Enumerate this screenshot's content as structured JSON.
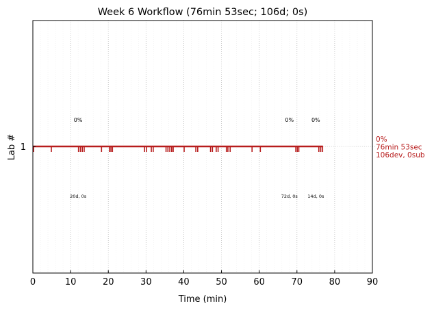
{
  "chart_data": {
    "type": "line",
    "title": "Week 6 Workflow (76min 53sec; 106d; 0s)",
    "xlabel": "Time (min)",
    "ylabel": "Lab #",
    "xlim": [
      0,
      90
    ],
    "x_ticks": [
      0,
      10,
      20,
      30,
      40,
      50,
      60,
      70,
      80,
      90
    ],
    "y_ticks": [
      {
        "value": 1,
        "label": "1"
      }
    ],
    "grid": true,
    "color": "#b71c1c",
    "series": [
      {
        "y": 1,
        "start": 0,
        "end": 76.9,
        "right_labels": [
          "0%",
          "76min 53sec",
          "106dev, 0sub"
        ],
        "events": [
          0.2,
          4.9,
          12.1,
          12.6,
          13.1,
          13.6,
          18.2,
          20.3,
          20.7,
          21.1,
          29.6,
          30.1,
          31.4,
          31.9,
          35.3,
          35.8,
          36.3,
          36.8,
          37.2,
          40.1,
          43.2,
          43.7,
          47.1,
          47.6,
          48.6,
          49.1,
          51.3,
          51.7,
          52.3,
          58.1,
          60.3,
          69.7,
          70.1,
          70.5,
          75.8,
          76.3,
          76.8
        ]
      }
    ],
    "annotations": [
      {
        "x": 12,
        "pct": "0%",
        "count": "20d, 0s"
      },
      {
        "x": 68,
        "pct": "0%",
        "count": "72d, 0s"
      },
      {
        "x": 75,
        "pct": "0%",
        "count": "14d, 0s"
      }
    ]
  }
}
